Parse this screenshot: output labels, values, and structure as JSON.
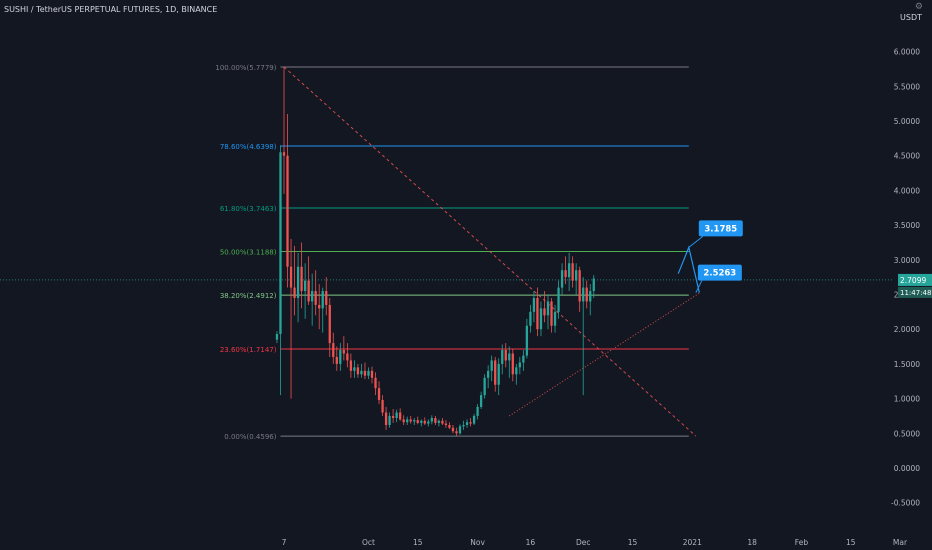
{
  "chart_title": "SUSHI / TetherUS PERPETUAL FUTURES, 1D, BINANCE",
  "unit_label": "USDT",
  "colors": {
    "background": "#131722",
    "axis_text": "#b2b5be",
    "up": "#26a69a",
    "down": "#ef5350",
    "callout": "#2196f3",
    "fib_0": "#787b86",
    "fib_236": "#f23645",
    "fib_382": "#81c784",
    "fib_50": "#4caf50",
    "fib_618": "#089981",
    "fib_786": "#2196f3",
    "fib_100": "#787b86"
  },
  "chart_data": {
    "type": "candlestick",
    "title": "SUSHI / TetherUS PERPETUAL FUTURES, 1D, BINANCE",
    "y_unit": "USDT",
    "ylim": [
      -0.7,
      6.6
    ],
    "y_ticks": [
      "6.0000",
      "5.5000",
      "5.0000",
      "4.5000",
      "4.0000",
      "3.5000",
      "3.0000",
      "2.5000",
      "2.0000",
      "1.5000",
      "1.0000",
      "0.5000",
      "0.0000",
      "-0.5000"
    ],
    "x_ticks": [
      {
        "label": "7",
        "date": "2020-09-07"
      },
      {
        "label": "Oct",
        "date": "2020-10-01"
      },
      {
        "label": "15",
        "date": "2020-10-15"
      },
      {
        "label": "Nov",
        "date": "2020-11-01"
      },
      {
        "label": "16",
        "date": "2020-11-16"
      },
      {
        "label": "Dec",
        "date": "2020-12-01"
      },
      {
        "label": "15",
        "date": "2020-12-15"
      },
      {
        "label": "2021",
        "date": "2021-01-01"
      },
      {
        "label": "18",
        "date": "2021-01-18"
      },
      {
        "label": "Feb",
        "date": "2021-02-01"
      },
      {
        "label": "15",
        "date": "2021-02-15"
      },
      {
        "label": "Mar",
        "date": "2021-03-01"
      }
    ],
    "fib_levels": [
      {
        "label": "100.00%(5.7779)",
        "value": 5.7779
      },
      {
        "label": "78.60%(4.6398)",
        "value": 4.6398
      },
      {
        "label": "61.80%(3.7463)",
        "value": 3.7463
      },
      {
        "label": "50.00%(3.1188)",
        "value": 3.1188
      },
      {
        "label": "38.20%(2.4912)",
        "value": 2.4912
      },
      {
        "label": "23.60%(1.7147)",
        "value": 1.7147
      },
      {
        "label": "0.00%(0.4596)",
        "value": 0.4596
      }
    ],
    "fib_range": {
      "start_date": "2020-09-06",
      "end_date": "2020-12-31"
    },
    "current_price": "2.7099",
    "countdown": "11:47:48",
    "annotations": [
      {
        "label": "3.1785",
        "value": 3.1785,
        "date": "2020-12-31"
      },
      {
        "label": "2.5263",
        "value": 2.5263,
        "date": "2021-01-02"
      }
    ],
    "diagonal_line": {
      "from": {
        "date": "2020-09-07",
        "value": 5.7779
      },
      "to": {
        "date": "2021-01-02",
        "value": 0.4596
      }
    },
    "trend_line": {
      "from": {
        "date": "2020-11-10",
        "value": 0.75
      },
      "to": {
        "date": "2021-01-03",
        "value": 2.52
      }
    },
    "projection_path": [
      {
        "date": "2020-12-28",
        "value": 2.8
      },
      {
        "date": "2020-12-31",
        "value": 3.1785
      },
      {
        "date": "2021-01-03",
        "value": 2.5263
      }
    ],
    "candles_start_date": "2020-09-05",
    "candles": [
      [
        1.85,
        1.97,
        1.8,
        1.93
      ],
      [
        1.93,
        4.65,
        1.05,
        4.55
      ],
      [
        4.55,
        5.78,
        3.95,
        4.5
      ],
      [
        4.5,
        5.1,
        2.6,
        2.9
      ],
      [
        2.9,
        3.3,
        1.0,
        2.6
      ],
      [
        2.6,
        3.2,
        2.2,
        2.45
      ],
      [
        2.45,
        3.1,
        2.1,
        2.9
      ],
      [
        2.9,
        3.25,
        2.3,
        2.55
      ],
      [
        2.55,
        2.95,
        2.15,
        2.7
      ],
      [
        2.7,
        3.05,
        2.35,
        2.4
      ],
      [
        2.4,
        2.8,
        2.05,
        2.55
      ],
      [
        2.55,
        2.85,
        2.2,
        2.35
      ],
      [
        2.35,
        2.65,
        2.0,
        2.3
      ],
      [
        2.3,
        2.6,
        1.95,
        2.55
      ],
      [
        2.55,
        2.75,
        2.2,
        2.35
      ],
      [
        2.35,
        2.45,
        1.6,
        1.8
      ],
      [
        1.8,
        1.95,
        1.5,
        1.6
      ],
      [
        1.6,
        1.75,
        1.4,
        1.5
      ],
      [
        1.5,
        1.8,
        1.4,
        1.7
      ],
      [
        1.7,
        1.9,
        1.55,
        1.65
      ],
      [
        1.65,
        1.8,
        1.45,
        1.55
      ],
      [
        1.55,
        1.65,
        1.3,
        1.4
      ],
      [
        1.4,
        1.55,
        1.3,
        1.45
      ],
      [
        1.45,
        1.5,
        1.3,
        1.35
      ],
      [
        1.35,
        1.5,
        1.3,
        1.4
      ],
      [
        1.4,
        1.52,
        1.28,
        1.33
      ],
      [
        1.33,
        1.45,
        1.28,
        1.4
      ],
      [
        1.4,
        1.46,
        1.22,
        1.3
      ],
      [
        1.3,
        1.38,
        1.05,
        1.15
      ],
      [
        1.15,
        1.25,
        0.92,
        0.98
      ],
      [
        0.98,
        1.05,
        0.75,
        0.8
      ],
      [
        0.8,
        0.88,
        0.55,
        0.62
      ],
      [
        0.62,
        0.8,
        0.58,
        0.75
      ],
      [
        0.75,
        0.85,
        0.65,
        0.72
      ],
      [
        0.72,
        0.84,
        0.66,
        0.8
      ],
      [
        0.8,
        0.86,
        0.68,
        0.7
      ],
      [
        0.7,
        0.76,
        0.62,
        0.66
      ],
      [
        0.66,
        0.74,
        0.62,
        0.7
      ],
      [
        0.7,
        0.75,
        0.64,
        0.67
      ],
      [
        0.67,
        0.72,
        0.62,
        0.69
      ],
      [
        0.69,
        0.74,
        0.63,
        0.65
      ],
      [
        0.65,
        0.7,
        0.6,
        0.68
      ],
      [
        0.68,
        0.73,
        0.62,
        0.64
      ],
      [
        0.64,
        0.7,
        0.6,
        0.67
      ],
      [
        0.67,
        0.76,
        0.63,
        0.72
      ],
      [
        0.72,
        0.75,
        0.62,
        0.65
      ],
      [
        0.65,
        0.7,
        0.6,
        0.68
      ],
      [
        0.68,
        0.72,
        0.62,
        0.64
      ],
      [
        0.64,
        0.69,
        0.58,
        0.62
      ],
      [
        0.62,
        0.66,
        0.56,
        0.58
      ],
      [
        0.58,
        0.62,
        0.5,
        0.53
      ],
      [
        0.53,
        0.58,
        0.46,
        0.5
      ],
      [
        0.5,
        0.63,
        0.48,
        0.6
      ],
      [
        0.6,
        0.68,
        0.55,
        0.62
      ],
      [
        0.62,
        0.7,
        0.58,
        0.66
      ],
      [
        0.66,
        0.72,
        0.6,
        0.64
      ],
      [
        0.64,
        0.78,
        0.62,
        0.75
      ],
      [
        0.75,
        0.92,
        0.7,
        0.88
      ],
      [
        0.88,
        1.1,
        0.85,
        1.05
      ],
      [
        1.05,
        1.35,
        1.0,
        1.3
      ],
      [
        1.3,
        1.48,
        1.15,
        1.4
      ],
      [
        1.4,
        1.62,
        1.25,
        1.55
      ],
      [
        1.55,
        1.6,
        1.1,
        1.2
      ],
      [
        1.2,
        1.58,
        1.05,
        1.5
      ],
      [
        1.5,
        1.78,
        1.35,
        1.7
      ],
      [
        1.7,
        1.8,
        1.45,
        1.55
      ],
      [
        1.55,
        1.75,
        1.3,
        1.65
      ],
      [
        1.65,
        1.72,
        1.25,
        1.35
      ],
      [
        1.35,
        1.5,
        1.2,
        1.45
      ],
      [
        1.45,
        1.6,
        1.35,
        1.52
      ],
      [
        1.52,
        1.7,
        1.4,
        1.62
      ],
      [
        1.62,
        2.15,
        1.58,
        2.05
      ],
      [
        2.05,
        2.35,
        1.95,
        2.25
      ],
      [
        2.25,
        2.55,
        2.1,
        2.45
      ],
      [
        2.45,
        2.6,
        1.9,
        2.0
      ],
      [
        2.0,
        2.4,
        1.9,
        2.3
      ],
      [
        2.3,
        2.55,
        2.1,
        2.2
      ],
      [
        2.2,
        2.5,
        2.0,
        2.4
      ],
      [
        2.4,
        2.45,
        1.95,
        2.05
      ],
      [
        2.05,
        2.35,
        1.95,
        2.25
      ],
      [
        2.25,
        2.7,
        2.15,
        2.6
      ],
      [
        2.6,
        2.95,
        2.5,
        2.85
      ],
      [
        2.85,
        3.05,
        2.65,
        2.75
      ],
      [
        2.75,
        3.1,
        2.55,
        2.95
      ],
      [
        2.95,
        3.05,
        2.6,
        2.7
      ],
      [
        2.7,
        2.95,
        2.5,
        2.85
      ],
      [
        2.85,
        2.9,
        2.25,
        2.4
      ],
      [
        2.4,
        2.75,
        1.05,
        2.6
      ],
      [
        2.6,
        2.7,
        2.3,
        2.4
      ],
      [
        2.4,
        2.65,
        2.2,
        2.55
      ],
      [
        2.55,
        2.78,
        2.45,
        2.73
      ]
    ]
  }
}
